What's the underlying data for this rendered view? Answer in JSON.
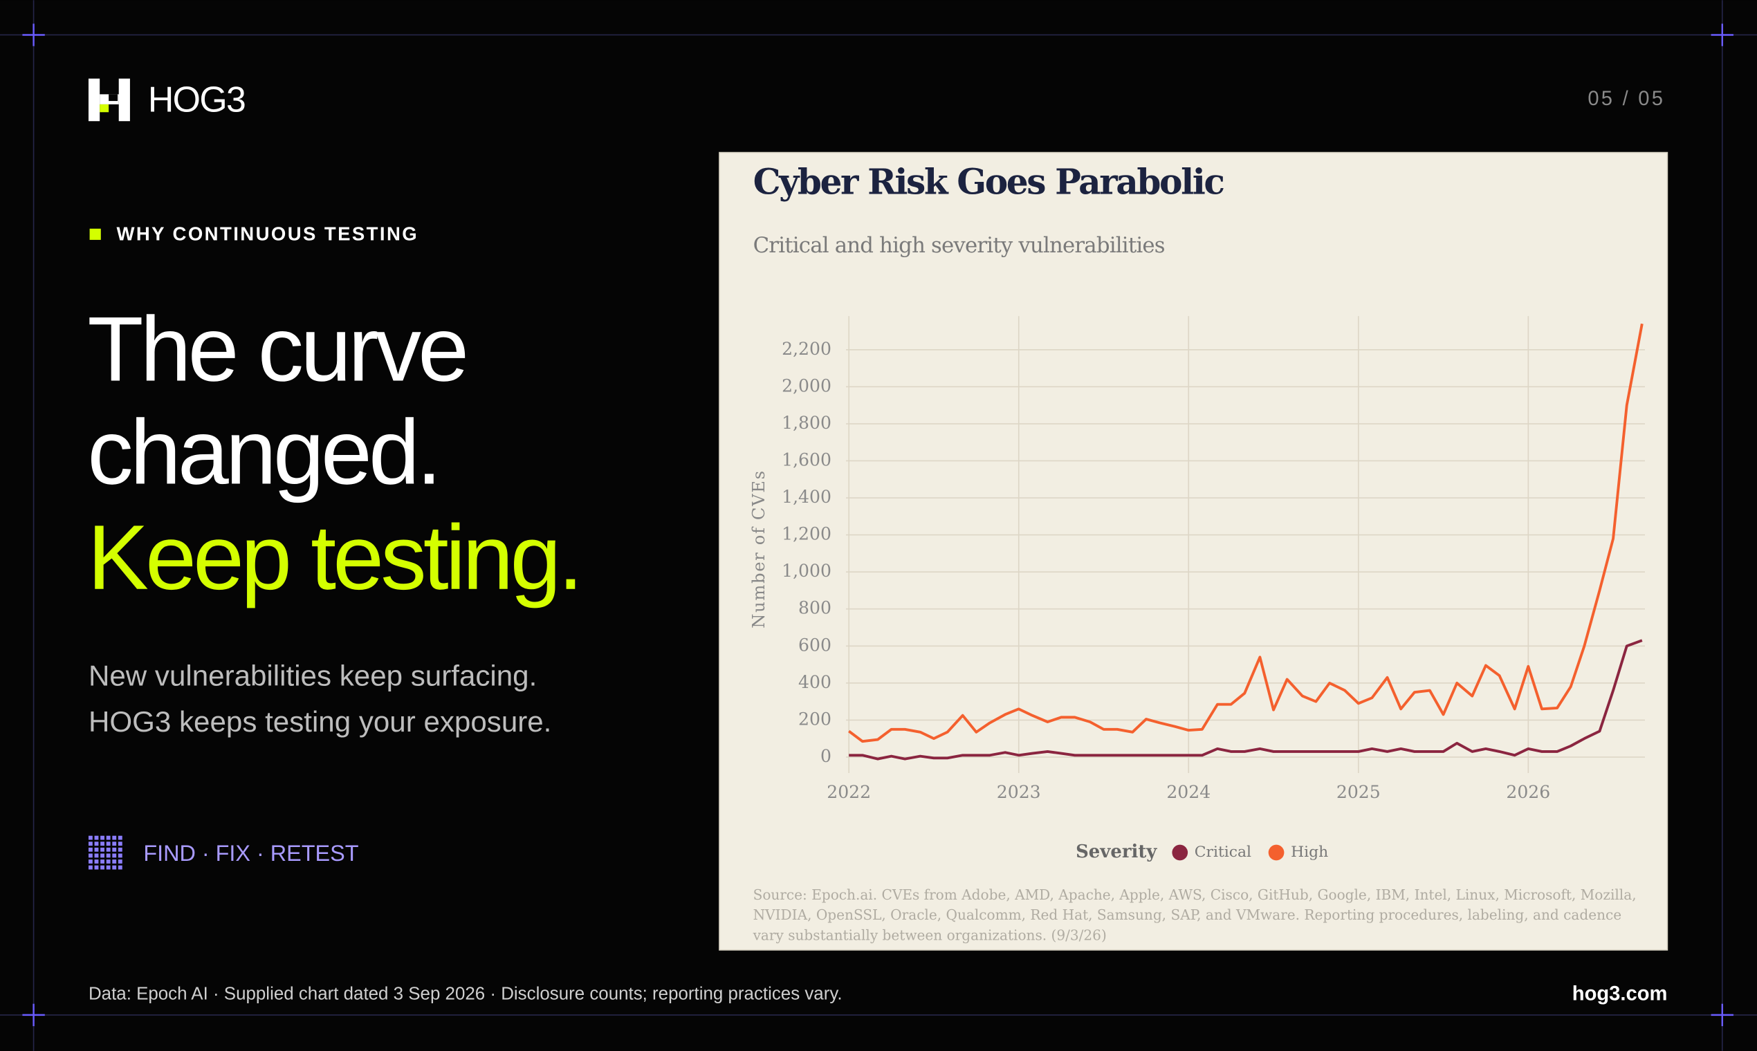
{
  "brand": "HOG3",
  "page_number": "05 / 05",
  "eyebrow": "WHY CONTINUOUS TESTING",
  "headline": [
    "The curve",
    "changed.",
    "Keep testing."
  ],
  "subhead": [
    "New vulnerabilities keep surfacing.",
    "HOG3 keeps testing your exposure."
  ],
  "tagline": "FIND · FIX · RETEST",
  "footer": {
    "note": "Data: Epoch AI · Supplied chart dated 3 Sep 2026 · Disclosure counts; reporting practices vary.",
    "url": "hog3.com"
  },
  "chart_data": {
    "type": "line",
    "title": "Cyber Risk Goes Parabolic",
    "subtitle": "Critical and high severity vulnerabilities",
    "y_label": "Number of CVEs",
    "legend_title": "Severity",
    "source": "Source: Epoch.ai. CVEs from Adobe, AMD, Apache, Apple, AWS, Cisco, GitHub, Google, IBM, Intel, Linux, Microsoft, Mozilla, NVIDIA, OpenSSL, Oracle, Qualcomm, Red Hat, Samsung, SAP, and VMware. Reporting procedures, labeling, and cadence vary substantially between organizations. (9/3/26)",
    "x": [
      2022,
      2022.08,
      2022.17,
      2022.25,
      2022.33,
      2022.42,
      2022.5,
      2022.58,
      2022.67,
      2022.75,
      2022.83,
      2022.92,
      2023,
      2023.08,
      2023.17,
      2023.25,
      2023.33,
      2023.42,
      2023.5,
      2023.58,
      2023.67,
      2023.75,
      2023.83,
      2023.92,
      2024,
      2024.08,
      2024.17,
      2024.25,
      2024.33,
      2024.42,
      2024.5,
      2024.58,
      2024.67,
      2024.75,
      2024.83,
      2024.92,
      2025,
      2025.08,
      2025.17,
      2025.25,
      2025.33,
      2025.42,
      2025.5,
      2025.58,
      2025.67,
      2025.75,
      2025.83,
      2025.92,
      2026,
      2026.08,
      2026.17,
      2026.25,
      2026.33,
      2026.42,
      2026.5,
      2026.58,
      2026.67
    ],
    "series": [
      {
        "name": "Critical",
        "color": "#8b2540",
        "values": [
          10,
          10,
          -10,
          5,
          -10,
          5,
          -5,
          -5,
          10,
          10,
          10,
          25,
          10,
          20,
          30,
          20,
          10,
          10,
          10,
          10,
          10,
          10,
          10,
          10,
          10,
          10,
          45,
          30,
          30,
          45,
          30,
          30,
          30,
          30,
          30,
          30,
          30,
          45,
          30,
          45,
          30,
          30,
          30,
          75,
          30,
          45,
          30,
          10,
          45,
          30,
          30,
          60,
          100,
          140,
          360,
          600,
          630
        ]
      },
      {
        "name": "High",
        "color": "#f4602e",
        "values": [
          140,
          85,
          95,
          150,
          150,
          135,
          100,
          135,
          225,
          135,
          185,
          230,
          260,
          225,
          190,
          215,
          215,
          190,
          150,
          150,
          135,
          205,
          185,
          165,
          145,
          150,
          285,
          285,
          345,
          540,
          255,
          420,
          330,
          300,
          400,
          360,
          290,
          320,
          430,
          260,
          350,
          360,
          230,
          400,
          330,
          495,
          440,
          260,
          490,
          260,
          265,
          380,
          600,
          900,
          1180,
          1900,
          2340
        ]
      }
    ],
    "xlim": [
      2021.95,
      2026.72
    ],
    "xticks": [
      2022,
      2023,
      2024,
      2025,
      2026
    ],
    "ylim": [
      -80,
      2400
    ],
    "yticks": [
      0,
      200,
      400,
      600,
      800,
      {
        "value": 1000,
        "label": "1,000"
      },
      {
        "value": 1200,
        "label": "1,200"
      },
      {
        "value": 1400,
        "label": "1,400"
      },
      {
        "value": 1600,
        "label": "1,600"
      },
      {
        "value": 1800,
        "label": "1,800"
      },
      {
        "value": 2000,
        "label": "2,000"
      },
      {
        "value": 2200,
        "label": "2,200"
      }
    ],
    "grid": true,
    "legend": "bottom"
  }
}
